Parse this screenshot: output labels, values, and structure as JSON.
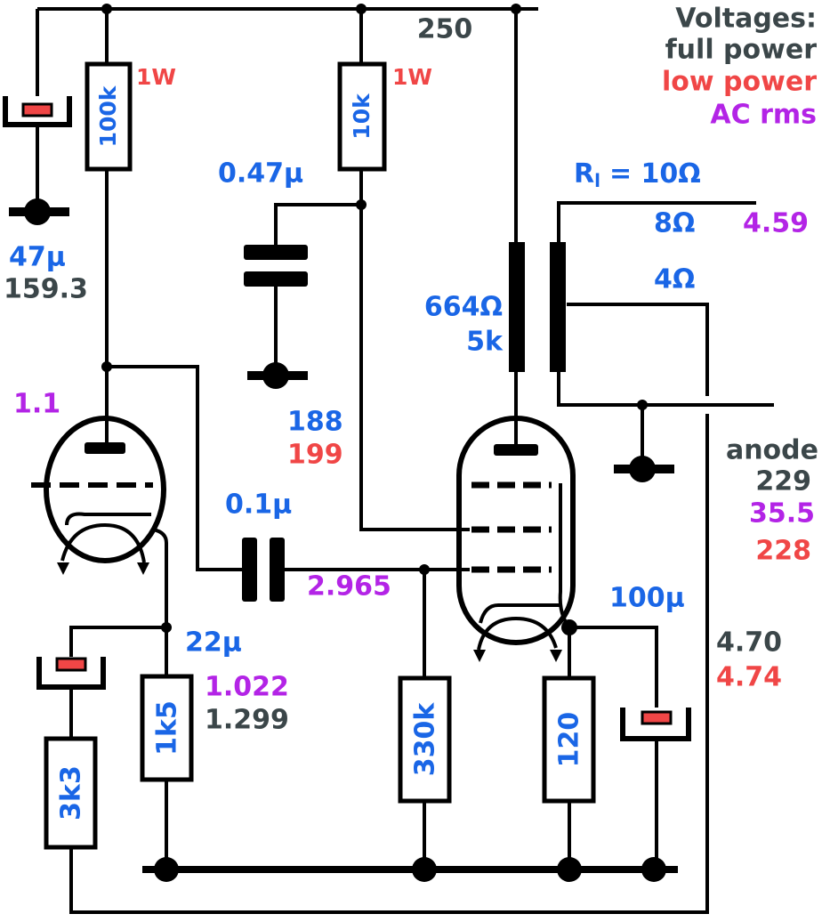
{
  "legend": {
    "title": "Voltages:",
    "full_power": "full power",
    "low_power": "low power",
    "ac_rms": "AC rms"
  },
  "supply": "250",
  "components": {
    "r_100k": {
      "value": "100k",
      "rating": "1W"
    },
    "r_10k": {
      "value": "10k",
      "rating": "1W"
    },
    "c_47u": {
      "value": "47µ",
      "voltage": "159.3"
    },
    "c_047u": {
      "value": "0.47µ"
    },
    "load": {
      "symbol": "R",
      "subscript": "l",
      "value": "= 10Ω"
    },
    "tap_8": {
      "value": "8Ω",
      "ac": "4.59"
    },
    "tap_4": {
      "value": "4Ω"
    },
    "transformer": {
      "secondary": "664Ω",
      "primary": "5k"
    },
    "c_01u": {
      "value": "0.1µ",
      "ac": "2.965"
    },
    "c_100u": {
      "value": "100µ"
    },
    "c_22u": {
      "value": "22µ",
      "ac": "1.022",
      "voltage": "1.299"
    },
    "r_3k3": {
      "value": "3k3"
    },
    "r_1k5": {
      "value": "1k5"
    },
    "r_330k": {
      "value": "330k"
    },
    "r_120": {
      "value": "120"
    }
  },
  "triode": {
    "ac": "1.1"
  },
  "screen": {
    "full": "188",
    "low": "199"
  },
  "anode": {
    "label": "anode",
    "full": "229",
    "ac": "35.5",
    "low": "228"
  },
  "cathode": {
    "full": "4.70",
    "low": "4.74"
  }
}
